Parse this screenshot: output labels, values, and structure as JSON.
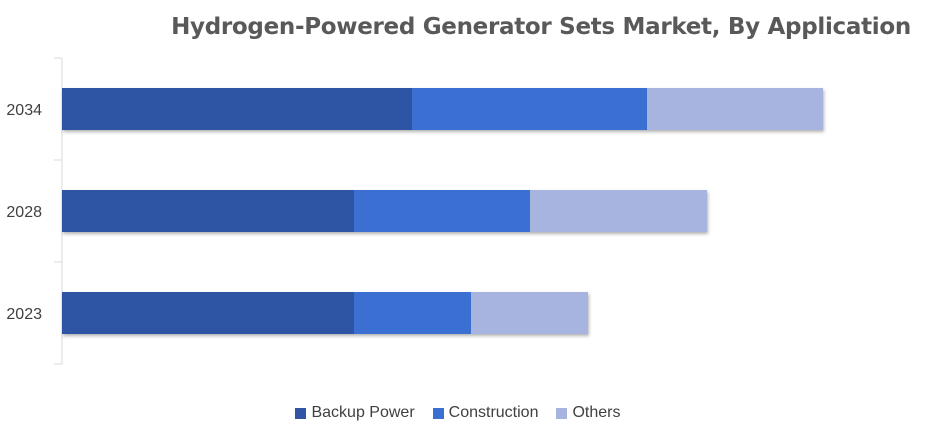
{
  "chart_data": {
    "type": "bar",
    "orientation": "horizontal",
    "stacked": true,
    "title": "Hydrogen-Powered Generator Sets Market, By Application",
    "categories": [
      "2034",
      "2028",
      "2023"
    ],
    "series": [
      {
        "name": "Backup Power",
        "color": "#2F55A4",
        "values": [
          350,
          292,
          292
        ]
      },
      {
        "name": "Construction",
        "color": "#3A70D2",
        "values": [
          235,
          176,
          117
        ]
      },
      {
        "name": "Others",
        "color": "#A7B4E0",
        "values": [
          176,
          177,
          117
        ]
      }
    ],
    "xlim": [
      0,
      870
    ],
    "grid": false,
    "x_axis_visible": false,
    "legend_position": "bottom"
  }
}
